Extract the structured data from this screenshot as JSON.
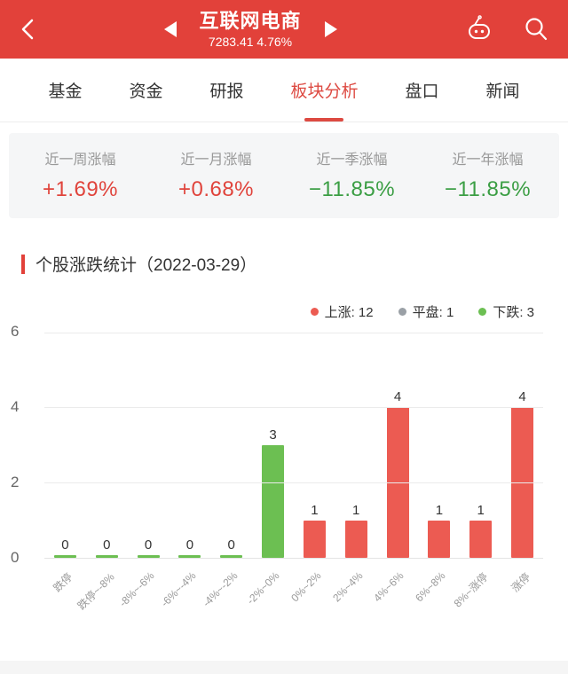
{
  "header": {
    "title": "互联网电商",
    "subtitle": "7283.41 4.76%"
  },
  "tabs": [
    {
      "label": "基金",
      "active": false
    },
    {
      "label": "资金",
      "active": false
    },
    {
      "label": "研报",
      "active": false
    },
    {
      "label": "板块分析",
      "active": true
    },
    {
      "label": "盘口",
      "active": false
    },
    {
      "label": "新闻",
      "active": false
    }
  ],
  "stats": [
    {
      "label": "近一周涨幅",
      "value": "+1.69%",
      "direction": "up"
    },
    {
      "label": "近一月涨幅",
      "value": "+0.68%",
      "direction": "up"
    },
    {
      "label": "近一季涨幅",
      "value": "−11.85%",
      "direction": "down"
    },
    {
      "label": "近一年涨幅",
      "value": "−11.85%",
      "direction": "down"
    }
  ],
  "chart_data": {
    "type": "bar",
    "title": "个股涨跌统计（2022-03-29）",
    "date": "2022-03-29",
    "categories": [
      "跌停",
      "跌停~-8%",
      "-8%~-6%",
      "-6%~-4%",
      "-4%~-2%",
      "-2%~0%",
      "0%~2%",
      "2%~4%",
      "4%~6%",
      "6%~8%",
      "8%~涨停",
      "涨停"
    ],
    "values": [
      0,
      0,
      0,
      0,
      0,
      3,
      1,
      1,
      4,
      1,
      1,
      4
    ],
    "bar_colors": [
      "#6cbf52",
      "#6cbf52",
      "#6cbf52",
      "#6cbf52",
      "#6cbf52",
      "#6cbf52",
      "#ec5b52",
      "#ec5b52",
      "#ec5b52",
      "#ec5b52",
      "#ec5b52",
      "#ec5b52"
    ],
    "ylim": [
      0,
      6
    ],
    "yticks": [
      0,
      2,
      4,
      6
    ],
    "grid": true,
    "legend_position": "top-right",
    "legend": [
      {
        "label": "上涨",
        "count": 12,
        "color": "#ec5b52",
        "text": "上涨: 12"
      },
      {
        "label": "平盘",
        "count": 1,
        "color": "#9aa0a6",
        "text": "平盘: 1"
      },
      {
        "label": "下跌",
        "count": 3,
        "color": "#6cbf52",
        "text": "下跌: 3"
      }
    ],
    "xlabel": "",
    "ylabel": ""
  },
  "colors": {
    "header_red": "#e2413a",
    "accent_red_text": "#e0443c",
    "green_text": "#3b9e44",
    "bar_red": "#ec5b52",
    "bar_green": "#6cbf52",
    "stats_bg": "#f5f6f7"
  }
}
